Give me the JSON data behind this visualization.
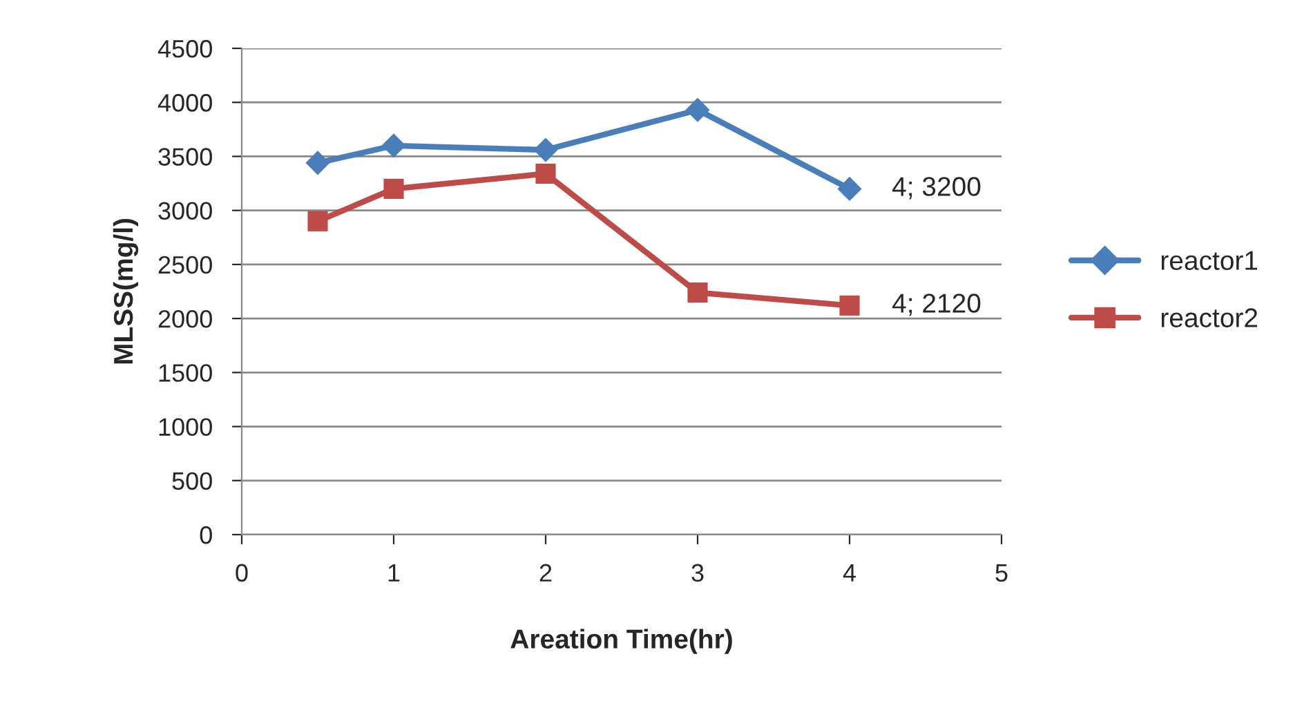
{
  "chart_data": {
    "type": "line",
    "xlabel": "Areation Time(hr)",
    "ylabel": "MLSS(mg/l)",
    "x": [
      0.5,
      1,
      2,
      3,
      4
    ],
    "series": [
      {
        "name": "reactor1",
        "color": "#4a7ebb",
        "marker": "diamond",
        "values": [
          3440,
          3600,
          3560,
          3930,
          3200
        ]
      },
      {
        "name": "reactor2",
        "color": "#be4b48",
        "marker": "square",
        "values": [
          2900,
          3200,
          3340,
          2240,
          2120
        ]
      }
    ],
    "xlim": [
      0,
      5
    ],
    "xticks": [
      0,
      1,
      2,
      3,
      4,
      5
    ],
    "ylim": [
      0,
      4500
    ],
    "yticks": [
      0,
      500,
      1000,
      1500,
      2000,
      2500,
      3000,
      3500,
      4000,
      4500
    ],
    "grid": "y",
    "legend": "right",
    "line_style": "solid",
    "annotations": [
      {
        "text": "4; 3200",
        "x": 4,
        "y": 3200
      },
      {
        "text": "4; 2120",
        "x": 4,
        "y": 2120
      }
    ]
  }
}
